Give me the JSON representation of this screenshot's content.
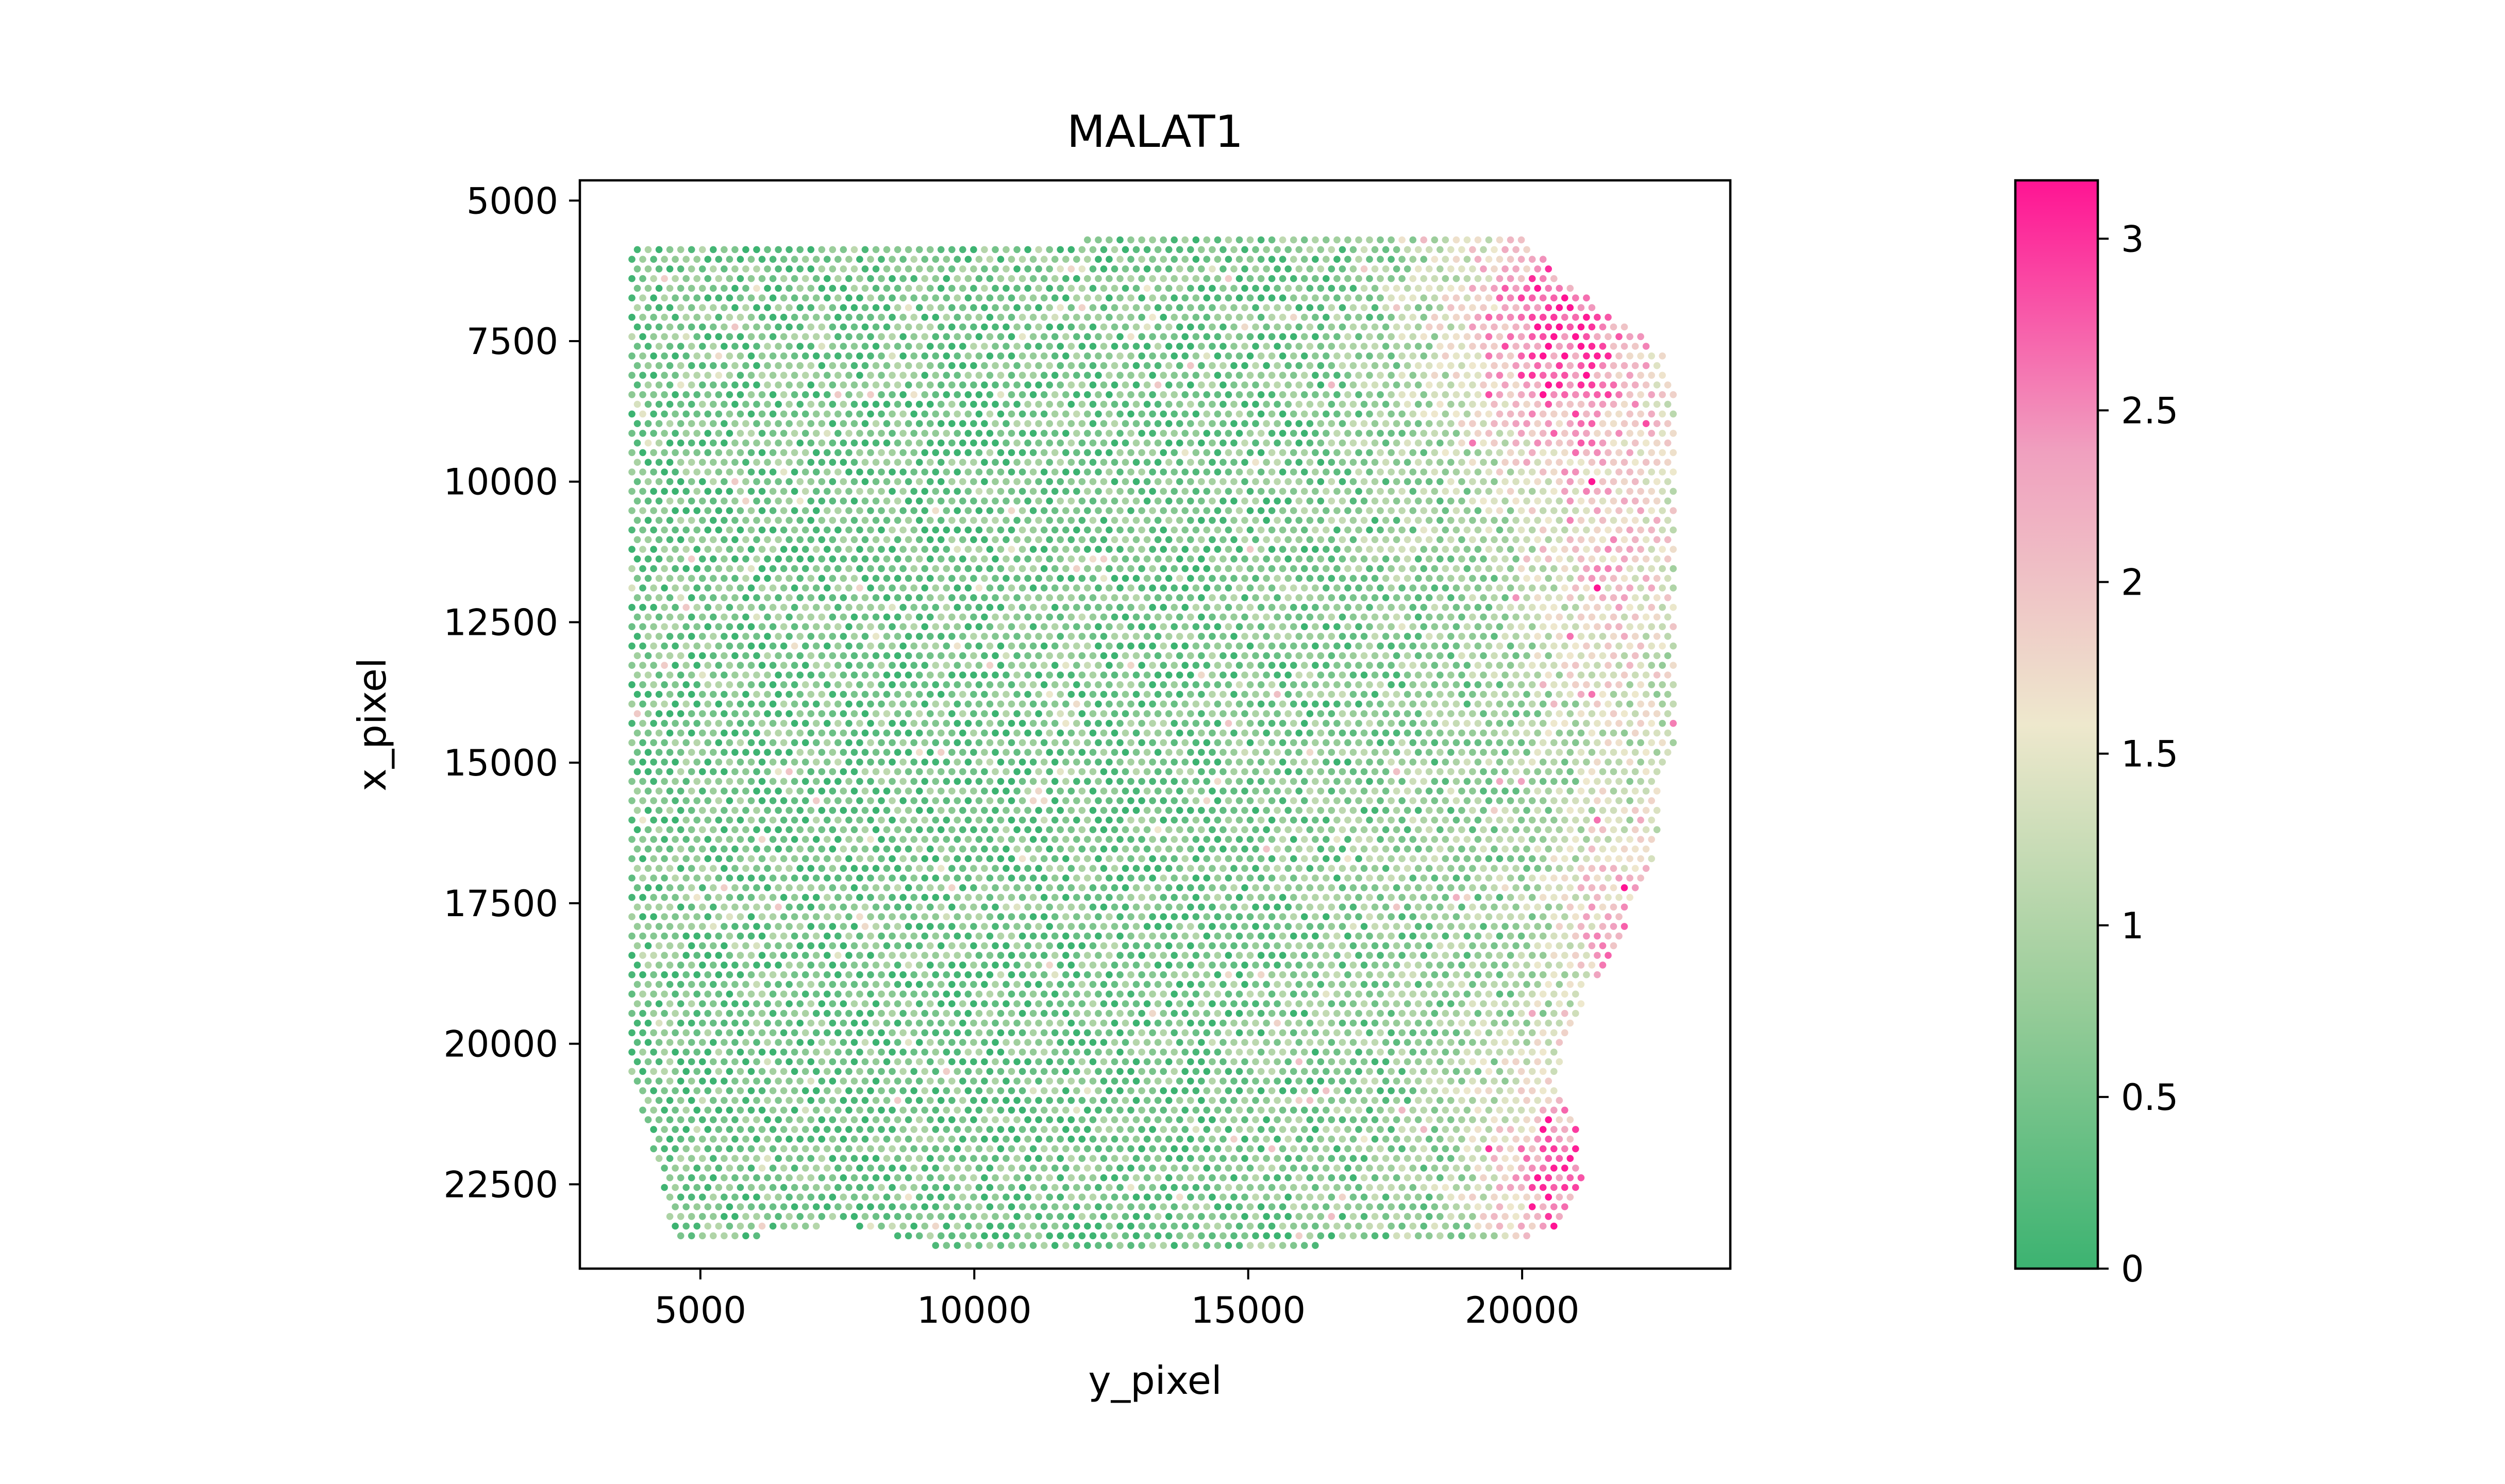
{
  "chart_data": {
    "type": "scatter",
    "title": "MALAT1",
    "xlabel": "y_pixel",
    "ylabel": "x_pixel",
    "xlim": [
      2800,
      23800
    ],
    "ylim": [
      24000,
      4640
    ],
    "y_inverted": true,
    "xticks": [
      5000,
      10000,
      15000,
      20000
    ],
    "xtick_labels": [
      "5000",
      "10000",
      "15000",
      "20000"
    ],
    "yticks": [
      5000,
      7500,
      10000,
      12500,
      15000,
      17500,
      20000,
      22500
    ],
    "ytick_labels": [
      "5000",
      "7500",
      "10000",
      "12500",
      "15000",
      "17500",
      "20000",
      "22500"
    ],
    "grid": false,
    "legend": "none",
    "points": {
      "grid_spacing_x": 198,
      "grid_spacing_y": 172,
      "hex_offset_x": 99,
      "x_range": [
        3750,
        22850
      ],
      "y_range": [
        5700,
        23650
      ],
      "region_outline": [
        [
          3750,
          5800
        ],
        [
          20100,
          5600
        ],
        [
          20500,
          6200
        ],
        [
          22550,
          7700
        ],
        [
          22800,
          8500
        ],
        [
          22900,
          14600
        ],
        [
          22550,
          15000
        ],
        [
          22450,
          16600
        ],
        [
          22150,
          17200
        ],
        [
          21750,
          18300
        ],
        [
          21150,
          19100
        ],
        [
          20600,
          20600
        ],
        [
          20950,
          21300
        ],
        [
          21150,
          22600
        ],
        [
          20650,
          23400
        ],
        [
          16050,
          23600
        ],
        [
          11050,
          23650
        ],
        [
          9200,
          23600
        ],
        [
          7600,
          23200
        ],
        [
          6500,
          23350
        ],
        [
          5600,
          23500
        ],
        [
          4550,
          23500
        ],
        [
          4350,
          22700
        ],
        [
          3750,
          20500
        ],
        [
          3750,
          5800
        ]
      ],
      "expression_description": "mostly low (0-1) values with elevated expression (1.5-3.2) concentrated in the upper-right and lower-right portions of the tissue"
    },
    "colorbar": {
      "min": 0,
      "max": 3.17,
      "ticks": [
        0,
        0.5,
        1,
        1.5,
        2,
        2.5,
        3
      ],
      "tick_labels": [
        "0",
        "0.5",
        "1",
        "1.5",
        "2",
        "2.5",
        "3"
      ],
      "colormap": [
        [
          0.0,
          "#3cb371"
        ],
        [
          0.25,
          "#9acd9a"
        ],
        [
          0.5,
          "#eee8cd"
        ],
        [
          0.75,
          "#f0a0bf"
        ],
        [
          1.0,
          "#ff1493"
        ]
      ]
    }
  }
}
